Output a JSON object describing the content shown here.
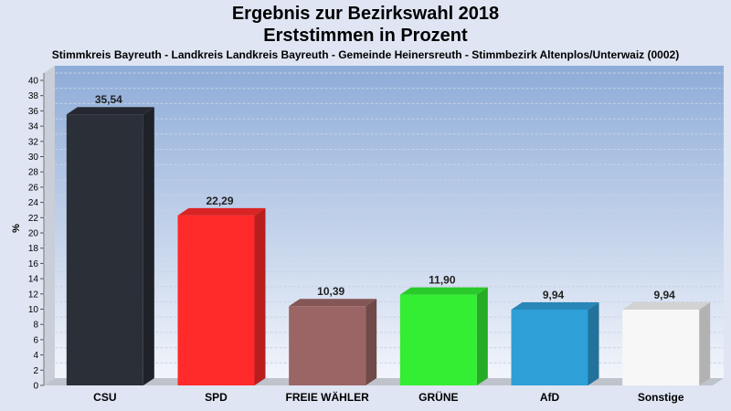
{
  "header": {
    "title_line1": "Ergebnis zur Bezirkswahl 2018",
    "title_line2": "Erststimmen in Prozent",
    "subtitle": "Stimmkreis Bayreuth - Landkreis Landkreis Bayreuth - Gemeinde Heinersreuth - Stimmbezirk Altenplos/Unterwaiz (0002)"
  },
  "chart_data": {
    "type": "bar",
    "title": "Ergebnis zur Bezirkswahl 2018 Erststimmen in Prozent",
    "subtitle": "Stimmkreis Bayreuth - Landkreis Landkreis Bayreuth - Gemeinde Heinersreuth - Stimmbezirk Altenplos/Unterwaiz (0002)",
    "categories": [
      "CSU",
      "SPD",
      "FREIE WÄHLER",
      "GRÜNE",
      "AfD",
      "Sonstige"
    ],
    "values": [
      35.54,
      22.29,
      10.39,
      11.9,
      9.94,
      9.94
    ],
    "value_labels": [
      "35,54",
      "22,29",
      "10,39",
      "11,90",
      "9,94",
      "9,94"
    ],
    "colors": [
      "#2b2f38",
      "#ff2a2a",
      "#9b6565",
      "#33ee33",
      "#2f9fd8",
      "#f7f7f7"
    ],
    "xlabel": "",
    "ylabel": "%",
    "ylim": [
      0,
      40
    ],
    "ytick_step": 2,
    "grid": true
  }
}
